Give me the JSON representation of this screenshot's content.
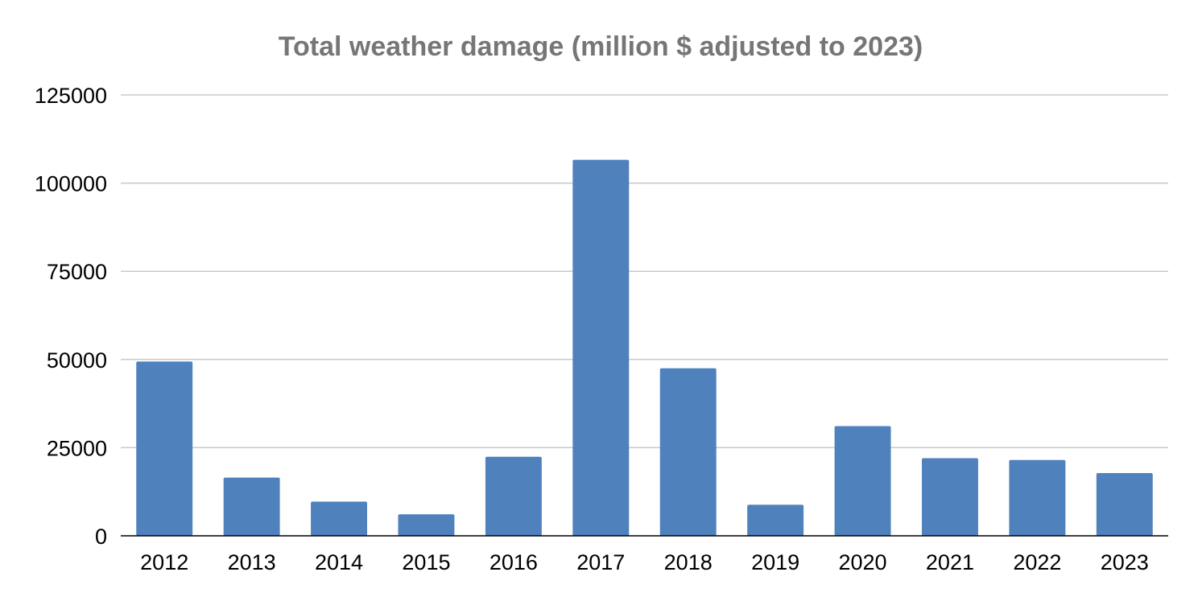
{
  "chart_data": {
    "type": "bar",
    "title": "Total weather damage (million $ adjusted to 2023)",
    "xlabel": "",
    "ylabel": "",
    "categories": [
      "2012",
      "2013",
      "2014",
      "2015",
      "2016",
      "2017",
      "2018",
      "2019",
      "2020",
      "2021",
      "2022",
      "2023"
    ],
    "values": [
      49400,
      16500,
      9700,
      6100,
      22400,
      106600,
      47500,
      8800,
      31100,
      22000,
      21500,
      17800
    ],
    "ylim": [
      0,
      125000
    ],
    "yticks": [
      "0",
      "25000",
      "50000",
      "75000",
      "100000",
      "125000"
    ],
    "grid": true,
    "legend": "none",
    "bar_color": "#4f81bd"
  }
}
